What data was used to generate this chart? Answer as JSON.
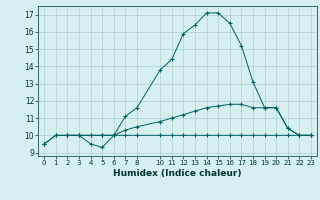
{
  "title": "",
  "xlabel": "Humidex (Indice chaleur)",
  "bg_color": "#d6f0f0",
  "grid_color": "#b0d0d0",
  "line_color": "#006060",
  "xlim": [
    -0.5,
    23.5
  ],
  "ylim": [
    8.8,
    17.5
  ],
  "yticks": [
    9,
    10,
    11,
    12,
    13,
    14,
    15,
    16,
    17
  ],
  "xticks": [
    0,
    1,
    2,
    3,
    4,
    5,
    6,
    7,
    8,
    10,
    11,
    12,
    13,
    14,
    15,
    16,
    17,
    18,
    19,
    20,
    21,
    22,
    23
  ],
  "line1_x": [
    0,
    1,
    2,
    3,
    4,
    5,
    6,
    7,
    8,
    10,
    11,
    12,
    13,
    14,
    15,
    16,
    17,
    18,
    19,
    20,
    21,
    22,
    23
  ],
  "line1_y": [
    9.5,
    10.0,
    10.0,
    10.0,
    9.5,
    9.3,
    10.0,
    11.1,
    11.6,
    13.8,
    14.4,
    15.9,
    16.4,
    17.1,
    17.1,
    16.5,
    15.2,
    13.1,
    11.6,
    11.6,
    10.4,
    10.0,
    10.0
  ],
  "line2_x": [
    2,
    3,
    4,
    5,
    6,
    7,
    8,
    10,
    11,
    12,
    13,
    14,
    15,
    16,
    17,
    18,
    19,
    20,
    21,
    22,
    23
  ],
  "line2_y": [
    10.0,
    10.0,
    10.0,
    10.0,
    10.0,
    10.3,
    10.5,
    10.8,
    11.0,
    11.2,
    11.4,
    11.6,
    11.7,
    11.8,
    11.8,
    11.6,
    11.6,
    11.6,
    10.4,
    10.0,
    10.0
  ],
  "line3_x": [
    0,
    1,
    2,
    3,
    4,
    5,
    6,
    7,
    8,
    10,
    11,
    12,
    13,
    14,
    15,
    16,
    17,
    18,
    19,
    20,
    21,
    22,
    23
  ],
  "line3_y": [
    9.5,
    10.0,
    10.0,
    10.0,
    10.0,
    10.0,
    10.0,
    10.0,
    10.0,
    10.0,
    10.0,
    10.0,
    10.0,
    10.0,
    10.0,
    10.0,
    10.0,
    10.0,
    10.0,
    10.0,
    10.0,
    10.0,
    10.0
  ]
}
